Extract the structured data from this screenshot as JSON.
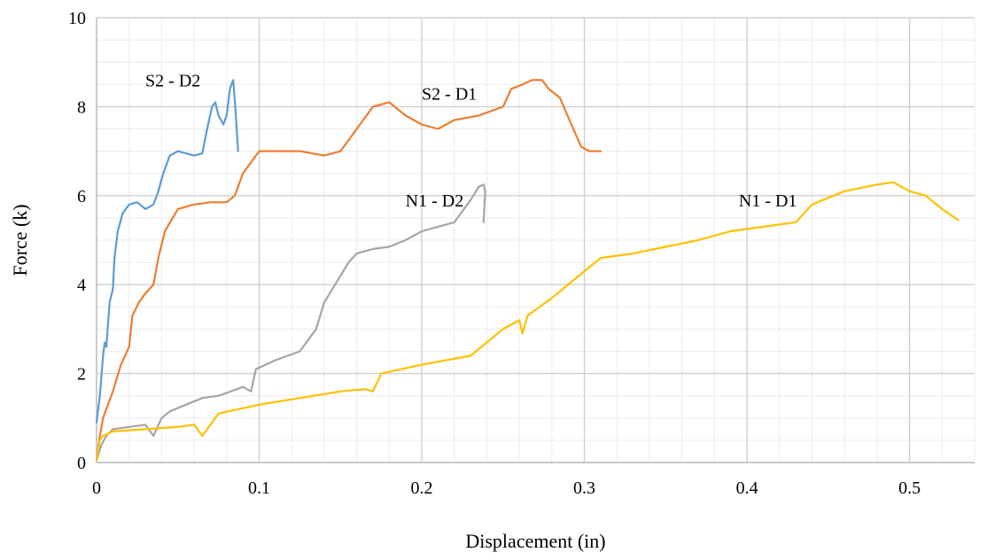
{
  "chart_data": {
    "type": "line",
    "title": "",
    "xlabel": "Displacement (in)",
    "ylabel": "Force (k)",
    "xlim": [
      0,
      0.54
    ],
    "ylim": [
      0,
      10
    ],
    "x_ticks": [
      0,
      0.1,
      0.2,
      0.3,
      0.4,
      0.5
    ],
    "x_tick_labels": [
      "0",
      "0.1",
      "0.2",
      "0.3",
      "0.4",
      "0.5"
    ],
    "y_ticks": [
      0,
      2,
      4,
      6,
      8,
      10
    ],
    "y_tick_labels": [
      "0",
      "2",
      "4",
      "6",
      "8",
      "10"
    ],
    "x_minor_step": 0.02,
    "y_minor_step": 0.5,
    "grid": true,
    "legend": "none",
    "series": [
      {
        "name": "S2 - D2",
        "color": "#5b9bd5",
        "points": [
          [
            0,
            0.9
          ],
          [
            0.002,
            1.5
          ],
          [
            0.004,
            2.4
          ],
          [
            0.005,
            2.7
          ],
          [
            0.006,
            2.6
          ],
          [
            0.008,
            3.6
          ],
          [
            0.01,
            3.9
          ],
          [
            0.011,
            4.6
          ],
          [
            0.013,
            5.2
          ],
          [
            0.016,
            5.6
          ],
          [
            0.02,
            5.8
          ],
          [
            0.025,
            5.85
          ],
          [
            0.03,
            5.7
          ],
          [
            0.035,
            5.8
          ],
          [
            0.038,
            6.1
          ],
          [
            0.041,
            6.5
          ],
          [
            0.045,
            6.9
          ],
          [
            0.05,
            7.0
          ],
          [
            0.055,
            6.95
          ],
          [
            0.06,
            6.9
          ],
          [
            0.065,
            6.95
          ],
          [
            0.068,
            7.5
          ],
          [
            0.071,
            8.0
          ],
          [
            0.073,
            8.1
          ],
          [
            0.075,
            7.8
          ],
          [
            0.078,
            7.6
          ],
          [
            0.08,
            7.8
          ],
          [
            0.082,
            8.4
          ],
          [
            0.084,
            8.6
          ],
          [
            0.0855,
            7.9
          ],
          [
            0.087,
            7.0
          ]
        ],
        "label_pos": [
          0.03,
          8.6
        ]
      },
      {
        "name": "S2 - D1",
        "color": "#ed7d31",
        "points": [
          [
            0,
            0.05
          ],
          [
            0.002,
            0.6
          ],
          [
            0.004,
            1.0
          ],
          [
            0.006,
            1.2
          ],
          [
            0.01,
            1.6
          ],
          [
            0.015,
            2.2
          ],
          [
            0.02,
            2.6
          ],
          [
            0.022,
            3.3
          ],
          [
            0.026,
            3.6
          ],
          [
            0.03,
            3.8
          ],
          [
            0.035,
            4.0
          ],
          [
            0.038,
            4.6
          ],
          [
            0.042,
            5.2
          ],
          [
            0.05,
            5.7
          ],
          [
            0.06,
            5.8
          ],
          [
            0.07,
            5.85
          ],
          [
            0.08,
            5.85
          ],
          [
            0.085,
            6.0
          ],
          [
            0.09,
            6.5
          ],
          [
            0.1,
            7.0
          ],
          [
            0.11,
            7.0
          ],
          [
            0.125,
            7.0
          ],
          [
            0.14,
            6.9
          ],
          [
            0.15,
            7.0
          ],
          [
            0.16,
            7.5
          ],
          [
            0.17,
            8.0
          ],
          [
            0.18,
            8.1
          ],
          [
            0.19,
            7.8
          ],
          [
            0.2,
            7.6
          ],
          [
            0.21,
            7.5
          ],
          [
            0.22,
            7.7
          ],
          [
            0.235,
            7.8
          ],
          [
            0.25,
            8.0
          ],
          [
            0.255,
            8.4
          ],
          [
            0.262,
            8.5
          ],
          [
            0.268,
            8.6
          ],
          [
            0.274,
            8.6
          ],
          [
            0.278,
            8.4
          ],
          [
            0.285,
            8.2
          ],
          [
            0.292,
            7.6
          ],
          [
            0.298,
            7.1
          ],
          [
            0.303,
            7.0
          ],
          [
            0.31,
            7.0
          ]
        ],
        "label_pos": [
          0.2,
          8.3
        ]
      },
      {
        "name": "N1 - D2",
        "color": "#a5a5a5",
        "points": [
          [
            0,
            0.05
          ],
          [
            0.003,
            0.4
          ],
          [
            0.006,
            0.6
          ],
          [
            0.01,
            0.75
          ],
          [
            0.02,
            0.8
          ],
          [
            0.03,
            0.85
          ],
          [
            0.035,
            0.6
          ],
          [
            0.04,
            1.0
          ],
          [
            0.045,
            1.15
          ],
          [
            0.055,
            1.3
          ],
          [
            0.065,
            1.45
          ],
          [
            0.075,
            1.5
          ],
          [
            0.09,
            1.7
          ],
          [
            0.095,
            1.6
          ],
          [
            0.098,
            2.1
          ],
          [
            0.11,
            2.3
          ],
          [
            0.125,
            2.5
          ],
          [
            0.135,
            3.0
          ],
          [
            0.14,
            3.6
          ],
          [
            0.145,
            3.9
          ],
          [
            0.15,
            4.2
          ],
          [
            0.155,
            4.5
          ],
          [
            0.16,
            4.7
          ],
          [
            0.17,
            4.8
          ],
          [
            0.18,
            4.85
          ],
          [
            0.19,
            5.0
          ],
          [
            0.2,
            5.2
          ],
          [
            0.21,
            5.3
          ],
          [
            0.22,
            5.4
          ],
          [
            0.23,
            5.9
          ],
          [
            0.235,
            6.2
          ],
          [
            0.238,
            6.25
          ],
          [
            0.239,
            6.1
          ],
          [
            0.238,
            5.4
          ]
        ],
        "label_pos": [
          0.19,
          5.9
        ]
      },
      {
        "name": "N1 - D1",
        "color": "#ffc000",
        "points": [
          [
            0,
            0.05
          ],
          [
            0.002,
            0.5
          ],
          [
            0.004,
            0.6
          ],
          [
            0.01,
            0.7
          ],
          [
            0.03,
            0.75
          ],
          [
            0.05,
            0.8
          ],
          [
            0.06,
            0.85
          ],
          [
            0.065,
            0.6
          ],
          [
            0.075,
            1.1
          ],
          [
            0.1,
            1.3
          ],
          [
            0.125,
            1.45
          ],
          [
            0.15,
            1.6
          ],
          [
            0.165,
            1.65
          ],
          [
            0.17,
            1.6
          ],
          [
            0.175,
            2.0
          ],
          [
            0.2,
            2.2
          ],
          [
            0.23,
            2.4
          ],
          [
            0.25,
            3.0
          ],
          [
            0.26,
            3.2
          ],
          [
            0.262,
            2.9
          ],
          [
            0.265,
            3.3
          ],
          [
            0.28,
            3.7
          ],
          [
            0.3,
            4.3
          ],
          [
            0.31,
            4.6
          ],
          [
            0.33,
            4.7
          ],
          [
            0.35,
            4.85
          ],
          [
            0.37,
            5.0
          ],
          [
            0.39,
            5.2
          ],
          [
            0.41,
            5.3
          ],
          [
            0.43,
            5.4
          ],
          [
            0.44,
            5.8
          ],
          [
            0.46,
            6.1
          ],
          [
            0.48,
            6.25
          ],
          [
            0.49,
            6.3
          ],
          [
            0.5,
            6.1
          ],
          [
            0.51,
            6.0
          ],
          [
            0.52,
            5.7
          ],
          [
            0.53,
            5.45
          ]
        ],
        "label_pos": [
          0.395,
          5.9
        ]
      }
    ]
  }
}
